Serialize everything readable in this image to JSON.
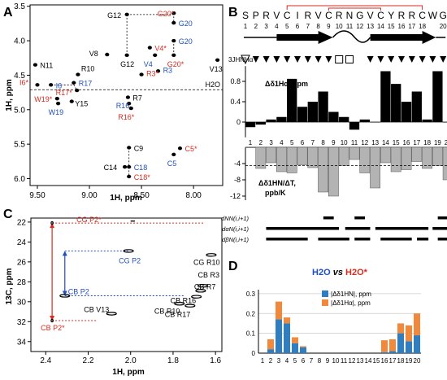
{
  "chart_data": [
    {
      "panel": "A",
      "type": "scatter",
      "xlabel": "1H, ppm",
      "ylabel": "1H, ppm",
      "x_ticks": [
        "9.50",
        "9.00",
        "8.50",
        "8.00"
      ],
      "y_ticks": [
        "3.5",
        "4.0",
        "4.5",
        "5.0",
        "5.5",
        "6.0"
      ],
      "xlim": [
        9.57,
        7.72
      ],
      "ylim": [
        3.48,
        6.1
      ],
      "h2o_label": "H2O",
      "h2o_y": 4.71,
      "peaks": [
        {
          "label": "G12",
          "x": 8.64,
          "y": 3.62,
          "color": "#000000"
        },
        {
          "label": "G20*",
          "x": 8.19,
          "y": 3.6,
          "color": "#d62b20"
        },
        {
          "label": "G20",
          "x": 8.19,
          "y": 3.74,
          "color": "#1f4fbd"
        },
        {
          "label": "G20",
          "x": 8.19,
          "y": 4.0,
          "color": "#1f4fbd"
        },
        {
          "label": "V4*",
          "x": 8.42,
          "y": 4.1,
          "color": "#d62b20"
        },
        {
          "label": "V8",
          "x": 8.83,
          "y": 4.2,
          "color": "#000000"
        },
        {
          "label": "G12",
          "x": 8.64,
          "y": 4.21,
          "color": "#000000"
        },
        {
          "label": "V4",
          "x": 8.37,
          "y": 4.21,
          "color": "#1f4fbd"
        },
        {
          "label": "G20*",
          "x": 8.19,
          "y": 4.21,
          "color": "#d62b20"
        },
        {
          "label": "V13",
          "x": 7.77,
          "y": 4.28,
          "color": "#000000"
        },
        {
          "label": "N11",
          "x": 9.52,
          "y": 4.35,
          "color": "#000000"
        },
        {
          "label": "R3",
          "x": 8.34,
          "y": 4.44,
          "color": "#1f4fbd"
        },
        {
          "label": "R10",
          "x": 9.11,
          "y": 4.49,
          "color": "#000000"
        },
        {
          "label": "R3*",
          "x": 8.5,
          "y": 4.49,
          "color": "#d62b20"
        },
        {
          "label": "I6*",
          "x": 9.5,
          "y": 4.64,
          "color": "#d62b20"
        },
        {
          "label": "I6",
          "x": 9.37,
          "y": 4.64,
          "color": "#1f4fbd"
        },
        {
          "label": "R17",
          "x": 9.15,
          "y": 4.61,
          "color": "#1f4fbd"
        },
        {
          "label": "R17*",
          "x": 9.12,
          "y": 4.72,
          "color": "#d62b20"
        },
        {
          "label": "R7",
          "x": 8.63,
          "y": 4.82,
          "color": "#000000"
        },
        {
          "label": "W19*",
          "x": 9.31,
          "y": 4.84,
          "color": "#d62b20"
        },
        {
          "label": "Y15",
          "x": 9.17,
          "y": 4.88,
          "color": "#000000"
        },
        {
          "label": "W19",
          "x": 9.3,
          "y": 4.91,
          "color": "#1f4fbd"
        },
        {
          "label": "R16",
          "x": 8.62,
          "y": 4.91,
          "color": "#1f4fbd"
        },
        {
          "label": "R16*",
          "x": 8.6,
          "y": 4.98,
          "color": "#d62b20"
        },
        {
          "label": "C9",
          "x": 8.62,
          "y": 5.55,
          "color": "#000000"
        },
        {
          "label": "C5*",
          "x": 8.13,
          "y": 5.56,
          "color": "#d62b20"
        },
        {
          "label": "C5",
          "x": 8.19,
          "y": 5.65,
          "color": "#1f4fbd"
        },
        {
          "label": "C14",
          "x": 8.66,
          "y": 5.83,
          "color": "#000000"
        },
        {
          "label": "C18",
          "x": 8.62,
          "y": 5.83,
          "color": "#1f4fbd"
        },
        {
          "label": "C18*",
          "x": 8.62,
          "y": 5.97,
          "color": "#d62b20"
        }
      ]
    },
    {
      "panel": "B-top",
      "type": "bar",
      "ylabel": "Δδ1Hα, ppm",
      "ylim": [
        -0.3,
        1.1
      ],
      "y_ticks": [
        "0.8",
        "0.4",
        "0"
      ],
      "categories": [
        "1",
        "2",
        "3",
        "4",
        "5",
        "6",
        "7",
        "8",
        "9",
        "10",
        "11",
        "12",
        "13",
        "14",
        "15",
        "16",
        "17",
        "18",
        "19",
        "20"
      ],
      "values": [
        -0.1,
        -0.05,
        0.05,
        0.1,
        0.85,
        0.3,
        0.4,
        0.6,
        0.2,
        0.1,
        -0.15,
        0.05,
        0.0,
        1.0,
        0.75,
        0.4,
        0.6,
        0.05,
        1.0,
        0.0
      ]
    },
    {
      "panel": "B-bottom",
      "type": "bar",
      "ylabel": "Δδ1HN/ΔT, ppb/K",
      "ylim": [
        -13,
        0
      ],
      "y_ticks": [
        "-4",
        "-8",
        "-12"
      ],
      "reference_line": -4.5,
      "categories": [
        "1",
        "2",
        "3",
        "4",
        "5",
        "6",
        "7",
        "8",
        "9",
        "10",
        "11",
        "12",
        "13",
        "14",
        "15",
        "16",
        "17",
        "18",
        "19",
        "20"
      ],
      "values": [
        0,
        -5.2,
        -3.8,
        -6.0,
        -6.3,
        -4.3,
        -5.0,
        -11.0,
        -12.0,
        -4.5,
        -3.0,
        -6.3,
        -10.0,
        -3.8,
        -6.0,
        -5.5,
        -3.5,
        -5.2,
        -4.5,
        -8.0
      ]
    },
    {
      "panel": "C",
      "type": "scatter",
      "xlabel": "1H, ppm",
      "ylabel": "13C, ppm",
      "x_ticks": [
        "2.4",
        "2.2",
        "2.0",
        "1.8",
        "1.6"
      ],
      "y_ticks": [
        "22",
        "24",
        "26",
        "28",
        "30",
        "32",
        "34"
      ],
      "xlim": [
        2.47,
        1.57
      ],
      "ylim": [
        21.6,
        35.0
      ],
      "peaks": [
        {
          "label": "CG P2*",
          "x": 2.37,
          "y": 22.1,
          "color": "#d62b20"
        },
        {
          "label": "CG P2",
          "x": 2.01,
          "y": 24.9,
          "color": "#1f4fbd"
        },
        {
          "label": "CG R10",
          "x": 1.62,
          "y": 25.3,
          "color": "#000000"
        },
        {
          "label": "CB P2",
          "x": 2.31,
          "y": 29.4,
          "color": "#1f4fbd"
        },
        {
          "label": "CB R3",
          "x": 1.66,
          "y": 28.4,
          "color": "#000000"
        },
        {
          "label": "CB R7",
          "x": 1.67,
          "y": 28.9,
          "color": "#000000"
        },
        {
          "label": "CB R16",
          "x": 1.69,
          "y": 29.5,
          "color": "#000000"
        },
        {
          "label": "CB R10",
          "x": 1.72,
          "y": 30.4,
          "color": "#000000"
        },
        {
          "label": "CB V13",
          "x": 2.09,
          "y": 31.2,
          "color": "#000000"
        },
        {
          "label": "CB R17",
          "x": 1.77,
          "y": 30.2,
          "color": "#000000"
        },
        {
          "label": "CB P2*",
          "x": 2.37,
          "y": 31.9,
          "color": "#d62b20"
        }
      ]
    },
    {
      "panel": "D",
      "type": "bar",
      "stacked": true,
      "title_parts": [
        "H2O",
        "vs",
        "H2O*"
      ],
      "ylim": [
        0,
        0.32
      ],
      "y_ticks": [
        "0.3",
        "0.2",
        "0.1",
        "0"
      ],
      "categories": [
        "1",
        "2",
        "3",
        "4",
        "5",
        "6",
        "7",
        "8",
        "9",
        "10",
        "11",
        "12",
        "13",
        "14",
        "15",
        "16",
        "17",
        "18",
        "19",
        "20"
      ],
      "legend_position": "top-right",
      "series": [
        {
          "name": "|Δδ1HN|, ppm",
          "color": "#2f7ec1",
          "values": [
            0,
            0.02,
            0.17,
            0.15,
            0.05,
            0.03,
            0,
            0,
            0,
            0,
            0,
            0,
            0,
            0,
            0,
            0.005,
            0.01,
            0.1,
            0.06,
            0.09
          ]
        },
        {
          "name": "|Δδ1Hα|, ppm",
          "color": "#f0893b",
          "values": [
            0,
            0.05,
            0.09,
            0.03,
            0.03,
            0.005,
            0,
            0,
            0,
            0,
            0,
            0,
            0,
            0,
            0,
            0.06,
            0.06,
            0.05,
            0.08,
            0.11
          ]
        }
      ]
    }
  ],
  "panels": {
    "a": "A",
    "b": "B",
    "c": "C",
    "d": "D"
  },
  "sequence": {
    "letters": [
      "S",
      "P",
      "R",
      "V",
      "C",
      "I",
      "R",
      "V",
      "C",
      "R",
      "N",
      "G",
      "V",
      "C",
      "Y",
      "R",
      "R",
      "C",
      "W",
      "G"
    ],
    "numbers": [
      "1",
      "5",
      "10",
      "15",
      "20"
    ],
    "coupling_label": "3JHNHα",
    "coupling_symbols": [
      "open-triangle",
      "filled",
      "filled",
      "filled",
      "filled",
      "filled",
      "filled",
      "filled",
      "filled",
      "open-square",
      "open-square",
      "none",
      "filled",
      "filled",
      "filled",
      "filled",
      "filled",
      "filled",
      "filled",
      "filled"
    ]
  },
  "noe": {
    "rows": [
      "dNN(i,i+1)",
      "dαN(i,i+1)",
      "dβN(i,i+1)"
    ]
  }
}
